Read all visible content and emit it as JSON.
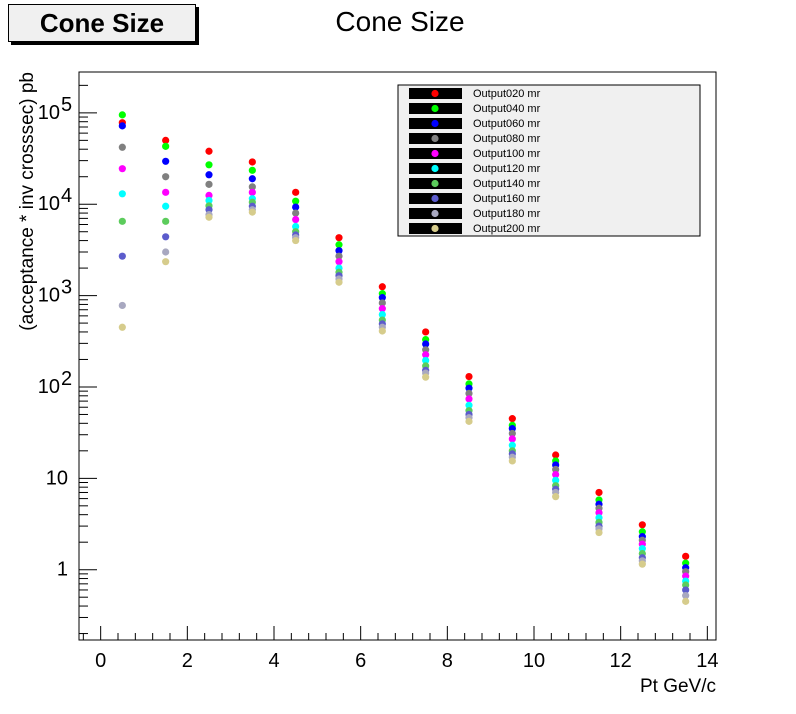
{
  "header": {
    "box_title": "Cone Size",
    "chart_title": "Cone Size"
  },
  "chart_data": {
    "type": "scatter",
    "title": "Cone Size",
    "xlabel": "Pt GeV/c",
    "ylabel": "(acceptance * inv crosssec) pb",
    "xlim": [
      -0.5,
      14.2
    ],
    "ylim": [
      0.17,
      280000
    ],
    "yscale": "log",
    "legend_position": "top-right",
    "x_ticks": [
      {
        "value": 0,
        "label": "0"
      },
      {
        "value": 2,
        "label": "2"
      },
      {
        "value": 4,
        "label": "4"
      },
      {
        "value": 6,
        "label": "6"
      },
      {
        "value": 8,
        "label": "8"
      },
      {
        "value": 10,
        "label": "10"
      },
      {
        "value": 12,
        "label": "12"
      },
      {
        "value": 14,
        "label": "14"
      }
    ],
    "y_ticks": [
      {
        "value": 1,
        "label": "1"
      },
      {
        "value": 10,
        "label": "10"
      },
      {
        "value": 100,
        "label": "10",
        "exp": "2"
      },
      {
        "value": 1000,
        "label": "10",
        "exp": "3"
      },
      {
        "value": 10000,
        "label": "10",
        "exp": "4"
      },
      {
        "value": 100000,
        "label": "10",
        "exp": "5"
      }
    ],
    "x": [
      0.5,
      1.5,
      2.5,
      3.5,
      4.5,
      5.5,
      6.5,
      7.5,
      8.5,
      9.5,
      10.5,
      11.5,
      12.5,
      13.5
    ],
    "series": [
      {
        "name": "Output020 mr",
        "color": "#ff0000",
        "values": [
          78000,
          50000,
          38000,
          29000,
          13500,
          4300,
          1250,
          400,
          130,
          45,
          18,
          7,
          3.1,
          1.4
        ]
      },
      {
        "name": "Output040 mr",
        "color": "#00ff00",
        "values": [
          95000,
          43000,
          27000,
          23500,
          10800,
          3600,
          1050,
          330,
          108,
          38,
          15.5,
          5.8,
          2.6,
          1.18
        ]
      },
      {
        "name": "Output060 mr",
        "color": "#0000ff",
        "values": [
          72000,
          29500,
          21000,
          19000,
          9300,
          3100,
          950,
          295,
          97,
          35,
          14,
          5.2,
          2.3,
          1.05
        ]
      },
      {
        "name": "Output080 mr",
        "color": "#808080",
        "values": [
          42000,
          20000,
          16500,
          15500,
          8000,
          2700,
          830,
          255,
          85,
          31,
          12.5,
          4.7,
          2.1,
          0.95
        ]
      },
      {
        "name": "Output100 mr",
        "color": "#ff00ff",
        "values": [
          24500,
          13500,
          12500,
          13500,
          6800,
          2350,
          720,
          225,
          74,
          27,
          11,
          4.2,
          1.9,
          0.85
        ]
      },
      {
        "name": "Output120 mr",
        "color": "#00ffff",
        "values": [
          13000,
          9500,
          11000,
          11500,
          5700,
          2000,
          620,
          195,
          63,
          23,
          9.5,
          3.7,
          1.7,
          0.75
        ]
      },
      {
        "name": "Output140 mr",
        "color": "#5ccc5c",
        "values": [
          6500,
          6500,
          9600,
          10500,
          5000,
          1800,
          540,
          170,
          55,
          20,
          8.3,
          3.3,
          1.5,
          0.68
        ]
      },
      {
        "name": "Output160 mr",
        "color": "#5c5ccc",
        "values": [
          2700,
          4400,
          8700,
          9500,
          4600,
          1650,
          490,
          152,
          50,
          18.5,
          7.6,
          3.0,
          1.35,
          0.6
        ]
      },
      {
        "name": "Output180 mr",
        "color": "#a8a8c0",
        "values": [
          780,
          3000,
          7700,
          8700,
          4300,
          1520,
          450,
          142,
          46,
          17,
          7.0,
          2.8,
          1.25,
          0.52
        ]
      },
      {
        "name": "Output200 mr",
        "color": "#d6cc8c",
        "values": [
          450,
          2350,
          7200,
          8200,
          4000,
          1400,
          410,
          128,
          42,
          15.5,
          6.3,
          2.55,
          1.15,
          0.45
        ]
      }
    ]
  }
}
